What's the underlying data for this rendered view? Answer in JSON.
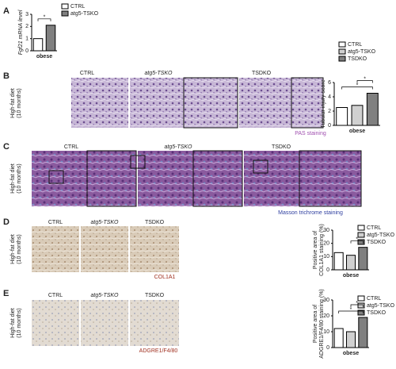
{
  "chart_data": [
    {
      "type": "bar",
      "ylabel": [
        "Fgf21 mRNA level"
      ],
      "categories": [
        "obese"
      ],
      "series": [
        {
          "name": "CTRL",
          "color": "#ffffff",
          "values": [
            1.0
          ]
        },
        {
          "name": "atg5-TSKO",
          "color": "#808080",
          "values": [
            2.1
          ]
        }
      ],
      "ylim": [
        0,
        3
      ],
      "yticks": [
        0,
        1,
        2,
        3
      ],
      "annotations": [
        "*"
      ]
    },
    {
      "type": "bar",
      "ylabel": [
        "Tubular injury score"
      ],
      "categories": [
        "obese"
      ],
      "series": [
        {
          "name": "CTRL",
          "color": "#ffffff",
          "values": [
            2.5
          ]
        },
        {
          "name": "atg5-TSKO",
          "color": "#d0d0d0",
          "values": [
            2.8
          ]
        },
        {
          "name": "TSDKO",
          "color": "#808080",
          "values": [
            4.5
          ]
        }
      ],
      "ylim": [
        0,
        6
      ],
      "yticks": [
        0,
        2,
        4,
        6
      ],
      "annotations": [
        "*",
        "*"
      ]
    },
    {
      "type": "bar",
      "ylabel": [
        "Positive area of",
        "COL1A1 staining (%)"
      ],
      "categories": [
        "obese"
      ],
      "series": [
        {
          "name": "CTRL",
          "color": "#ffffff",
          "values": [
            13
          ]
        },
        {
          "name": "atg5-TSKO",
          "color": "#d0d0d0",
          "values": [
            11
          ]
        },
        {
          "name": "TSDKO",
          "color": "#808080",
          "values": [
            17
          ]
        }
      ],
      "ylim": [
        0,
        30
      ],
      "yticks": [
        0,
        10,
        20,
        30
      ],
      "annotations": [
        "*"
      ]
    },
    {
      "type": "bar",
      "ylabel": [
        "Positive area of",
        "ADGRE1/F4/80 staining (%)"
      ],
      "categories": [
        "obese"
      ],
      "series": [
        {
          "name": "CTRL",
          "color": "#ffffff",
          "values": [
            12
          ]
        },
        {
          "name": "atg5-TSKO",
          "color": "#d0d0d0",
          "values": [
            10
          ]
        },
        {
          "name": "TSDKO",
          "color": "#808080",
          "values": [
            19
          ]
        }
      ],
      "ylim": [
        0,
        30
      ],
      "yticks": [
        0,
        10,
        20,
        30
      ],
      "annotations": [
        "*",
        "*"
      ]
    }
  ],
  "panels": [
    {
      "label": "A"
    },
    {
      "label": "B",
      "columns": [
        "CTRL",
        "atg5-TSKO",
        "TSDKO"
      ],
      "row_label": [
        "High-fat diet",
        "(10 months)"
      ],
      "stain": "PAS staining"
    },
    {
      "label": "C",
      "columns": [
        "CTRL",
        "atg5-TSKO",
        "TSDKO"
      ],
      "row_label": [
        "High-fat diet",
        "(10 months)"
      ],
      "stain": "Masson trichrome staining"
    },
    {
      "label": "D",
      "columns": [
        "CTRL",
        "atg5-TSKO",
        "TSDKO"
      ],
      "row_label": [
        "High-fat diet",
        "(10 months)"
      ],
      "stain": "COL1A1"
    },
    {
      "label": "E",
      "columns": [
        "CTRL",
        "atg5-TSKO",
        "TSDKO"
      ],
      "row_label": [
        "High-fat diet",
        "(10 months)"
      ],
      "stain": "ADGRE1/F4/80"
    }
  ]
}
